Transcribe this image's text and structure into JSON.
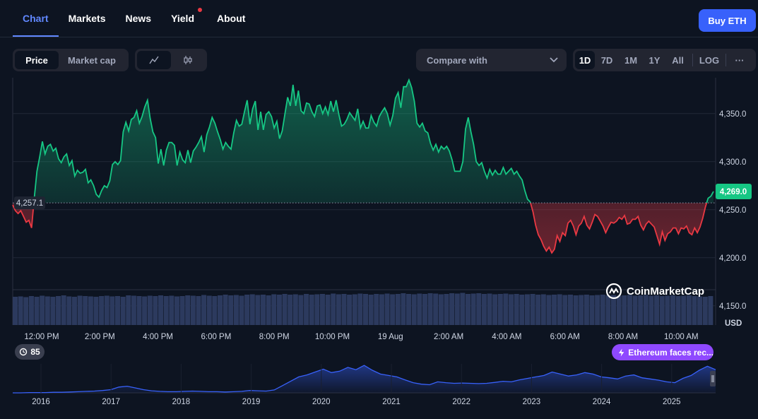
{
  "tabs": [
    {
      "label": "Chart",
      "active": true
    },
    {
      "label": "Markets"
    },
    {
      "label": "News"
    },
    {
      "label": "Yield",
      "has_dot": true
    },
    {
      "label": "About"
    }
  ],
  "buy_button": "Buy ETH",
  "toolbar": {
    "type_toggle": [
      "Price",
      "Market cap"
    ],
    "type_active": "Price",
    "chart_style_icons": [
      "line-chart-icon",
      "candlestick-icon"
    ],
    "compare_label": "Compare with",
    "ranges": [
      "1D",
      "7D",
      "1M",
      "1Y",
      "All"
    ],
    "range_active": "1D",
    "log_label": "LOG",
    "more_label": "···"
  },
  "logo_text": "CoinMarketCap",
  "event_count": "85",
  "news_pill": "Ethereum faces rec...",
  "colors": {
    "up": "#16c784",
    "down": "#ea3943",
    "accent": "#3861fb",
    "news": "#8f49ff"
  },
  "chart_data": {
    "type": "area",
    "x_ticks": [
      "12:00 PM",
      "2:00 PM",
      "4:00 PM",
      "6:00 PM",
      "8:00 PM",
      "10:00 PM",
      "19 Aug",
      "2:00 AM",
      "4:00 AM",
      "6:00 AM",
      "8:00 AM",
      "10:00 AM"
    ],
    "y_ticks": [
      "4,350.0",
      "4,300.0",
      "4,250.0",
      "4,200.0",
      "4,150.0"
    ],
    "y_tick_values": [
      4350,
      4300,
      4250,
      4200,
      4150
    ],
    "ylim": [
      4130,
      4380
    ],
    "y_unit": "USD",
    "baseline": 4257.1,
    "baseline_label": "4,257.1",
    "current_price": 4269.0,
    "current_label": "4,269.0",
    "grid": true,
    "price_series": [
      4255,
      4249,
      4246,
      4249,
      4243,
      4237,
      4239,
      4231,
      4262,
      4290,
      4305,
      4321,
      4308,
      4316,
      4318,
      4311,
      4314,
      4303,
      4299,
      4305,
      4308,
      4296,
      4301,
      4285,
      4291,
      4288,
      4289,
      4292,
      4278,
      4281,
      4275,
      4266,
      4263,
      4270,
      4275,
      4273,
      4280,
      4297,
      4300,
      4297,
      4301,
      4331,
      4341,
      4332,
      4344,
      4346,
      4353,
      4340,
      4347,
      4357,
      4364,
      4345,
      4331,
      4325,
      4298,
      4313,
      4296,
      4312,
      4320,
      4320,
      4317,
      4296,
      4310,
      4302,
      4299,
      4312,
      4299,
      4311,
      4315,
      4320,
      4326,
      4310,
      4328,
      4336,
      4346,
      4340,
      4331,
      4323,
      4313,
      4320,
      4316,
      4313,
      4330,
      4343,
      4337,
      4339,
      4352,
      4364,
      4339,
      4355,
      4363,
      4333,
      4352,
      4333,
      4349,
      4352,
      4347,
      4335,
      4342,
      4324,
      4332,
      4350,
      4367,
      4358,
      4380,
      4358,
      4374,
      4353,
      4350,
      4361,
      4360,
      4352,
      4347,
      4358,
      4359,
      4350,
      4357,
      4349,
      4363,
      4352,
      4364,
      4349,
      4337,
      4339,
      4344,
      4351,
      4347,
      4343,
      4355,
      4335,
      4342,
      4335,
      4335,
      4348,
      4341,
      4337,
      4347,
      4352,
      4356,
      4350,
      4338,
      4348,
      4366,
      4372,
      4356,
      4378,
      4378,
      4385,
      4377,
      4363,
      4340,
      4336,
      4340,
      4332,
      4330,
      4319,
      4312,
      4318,
      4310,
      4316,
      4313,
      4316,
      4311,
      4302,
      4290,
      4290,
      4290,
      4300,
      4334,
      4346,
      4331,
      4318,
      4300,
      4296,
      4299,
      4290,
      4283,
      4292,
      4286,
      4291,
      4287,
      4287,
      4294,
      4287,
      4290,
      4293,
      4287,
      4290,
      4285,
      4281,
      4270,
      4261,
      4258,
      4248,
      4234,
      4224,
      4219,
      4212,
      4207,
      4211,
      4205,
      4209,
      4223,
      4217,
      4226,
      4223,
      4236,
      4239,
      4233,
      4224,
      4233,
      4236,
      4243,
      4234,
      4230,
      4237,
      4245,
      4243,
      4238,
      4233,
      4226,
      4232,
      4237,
      4236,
      4238,
      4242,
      4240,
      4244,
      4235,
      4236,
      4240,
      4240,
      4243,
      4234,
      4229,
      4235,
      4238,
      4235,
      4232,
      4223,
      4214,
      4227,
      4218,
      4225,
      4227,
      4231,
      4231,
      4225,
      4231,
      4230,
      4233,
      4226,
      4224,
      4231,
      4226,
      4232,
      4241,
      4253,
      4262,
      4264,
      4269
    ],
    "volume_series": [
      0.8,
      0.81,
      0.79,
      0.82,
      0.8,
      0.83,
      0.81,
      0.8,
      0.82,
      0.84,
      0.81,
      0.8,
      0.83,
      0.82,
      0.81,
      0.8,
      0.82,
      0.83,
      0.81,
      0.82,
      0.8,
      0.84,
      0.83,
      0.82,
      0.81,
      0.83,
      0.82,
      0.84,
      0.82,
      0.83,
      0.81,
      0.82,
      0.84,
      0.83,
      0.82,
      0.85,
      0.83,
      0.82,
      0.84,
      0.86,
      0.84,
      0.85,
      0.83,
      0.86,
      0.87,
      0.85,
      0.86,
      0.84,
      0.87,
      0.86,
      0.88,
      0.86,
      0.87,
      0.85,
      0.88,
      0.86,
      0.87,
      0.88,
      0.86,
      0.89,
      0.87,
      0.88,
      0.86,
      0.87,
      0.89,
      0.88,
      0.86,
      0.88,
      0.87,
      0.89,
      0.87,
      0.88,
      0.9,
      0.88,
      0.87,
      0.89,
      0.88,
      0.9,
      0.89,
      0.87,
      0.88,
      0.9,
      0.89,
      0.91,
      0.88,
      0.89,
      0.9,
      0.88,
      0.89,
      0.87,
      0.88,
      0.89,
      0.87,
      0.88,
      0.86,
      0.87,
      0.88,
      0.86,
      0.87,
      0.85,
      0.86,
      0.87,
      0.85,
      0.86,
      0.84,
      0.85,
      0.86,
      0.84,
      0.85,
      0.86,
      0.84,
      0.85,
      0.83,
      0.84,
      0.85,
      0.83,
      0.84,
      0.85,
      0.83,
      0.84,
      0.82,
      0.83,
      0.84,
      0.82,
      0.83,
      0.84,
      0.82,
      0.81,
      0.8,
      0.82
    ],
    "overview_x_ticks": [
      "2016",
      "2017",
      "2018",
      "2019",
      "2020",
      "2021",
      "2022",
      "2023",
      "2024",
      "2025"
    ],
    "overview_series": [
      0.0,
      0.0,
      0.01,
      0.01,
      0.01,
      0.02,
      0.02,
      0.03,
      0.04,
      0.05,
      0.06,
      0.08,
      0.11,
      0.2,
      0.23,
      0.17,
      0.11,
      0.07,
      0.05,
      0.04,
      0.04,
      0.05,
      0.06,
      0.05,
      0.04,
      0.04,
      0.03,
      0.04,
      0.05,
      0.08,
      0.07,
      0.06,
      0.1,
      0.25,
      0.4,
      0.55,
      0.62,
      0.72,
      0.82,
      0.7,
      0.75,
      0.88,
      0.8,
      0.95,
      0.78,
      0.65,
      0.6,
      0.55,
      0.45,
      0.35,
      0.3,
      0.28,
      0.38,
      0.35,
      0.33,
      0.34,
      0.33,
      0.32,
      0.33,
      0.36,
      0.4,
      0.38,
      0.45,
      0.5,
      0.55,
      0.6,
      0.72,
      0.65,
      0.58,
      0.62,
      0.7,
      0.65,
      0.55,
      0.52,
      0.48,
      0.58,
      0.62,
      0.52,
      0.48,
      0.44,
      0.38,
      0.35,
      0.5,
      0.6,
      0.78,
      0.92,
      0.8
    ]
  }
}
